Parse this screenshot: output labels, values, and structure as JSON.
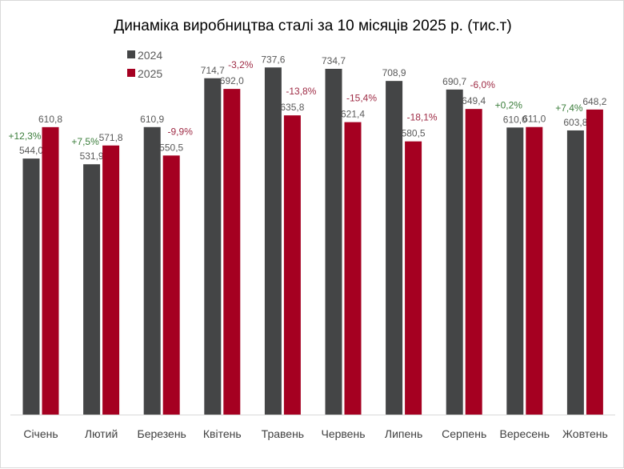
{
  "chart_data": {
    "type": "bar",
    "title": "Динаміка виробництва сталі за 10 місяців 2025 р. (тис.т)",
    "categories": [
      "Січень",
      "Лютий",
      "Березень",
      "Квітень",
      "Травень",
      "Червень",
      "Липень",
      "Серпень",
      "Вересень",
      "Жовтень"
    ],
    "series": [
      {
        "name": "2024",
        "color": "#444546",
        "values": [
          544.0,
          531.9,
          610.9,
          714.7,
          737.6,
          734.7,
          708.9,
          690.7,
          610.0,
          603.8
        ],
        "labels": [
          "544,0",
          "531,9",
          "610,9",
          "714,7",
          "737,6",
          "734,7",
          "708,9",
          "690,7",
          "610,0",
          "603,8"
        ]
      },
      {
        "name": "2025",
        "color": "#A50021",
        "values": [
          610.8,
          571.8,
          550.5,
          692.0,
          635.8,
          621.4,
          580.5,
          649.4,
          611.0,
          648.2
        ],
        "labels": [
          "610,8",
          "571,8",
          "550,5",
          "692,0",
          "635,8",
          "621,4",
          "580,5",
          "649,4",
          "611,0",
          "648,2"
        ]
      }
    ],
    "change_labels": [
      "+12,3%",
      "+7,5%",
      "-9,9%",
      "-3,2%",
      "-13,8%",
      "-15,4%",
      "-18,1%",
      "-6,0%",
      "+0,2%",
      "+7,4%"
    ],
    "positive_color": "#3A7D3A",
    "negative_color": "#9E2A44",
    "ylim": [
      0,
      740
    ],
    "grid": false,
    "legend": "top-left"
  }
}
